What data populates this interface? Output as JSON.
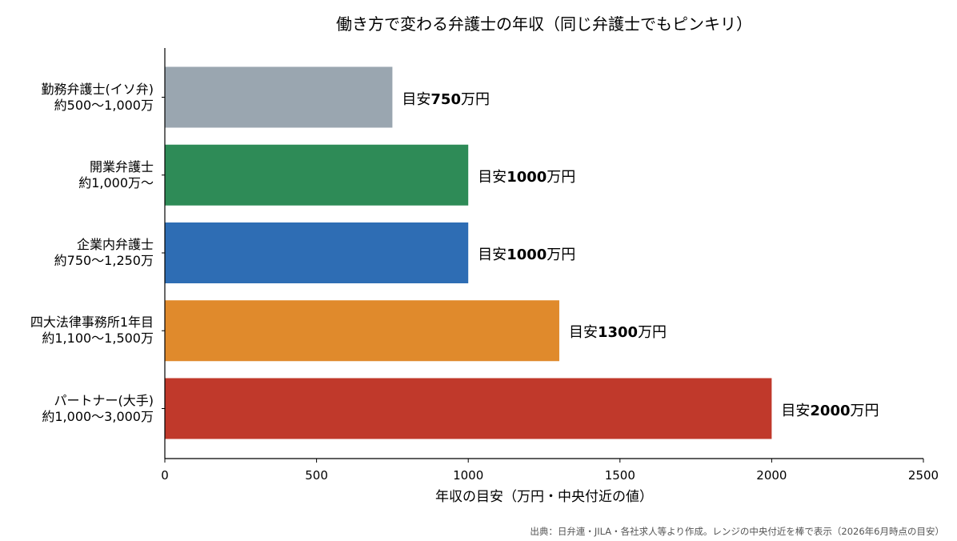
{
  "chart_data": {
    "type": "bar",
    "orientation": "horizontal",
    "title": "働き方で変わる弁護士の年収（同じ弁護士でもピンキリ）",
    "xlabel": "年収の目安（万円・中央付近の値）",
    "xlim": [
      0,
      2500
    ],
    "xticks": [
      "0",
      "500",
      "1000",
      "1500",
      "2000",
      "2500"
    ],
    "categories": [
      {
        "name": "勤務弁護士(イソ弁)",
        "range": "約500〜1,000万"
      },
      {
        "name": "開業弁護士",
        "range": "約1,000万〜"
      },
      {
        "name": "企業内弁護士",
        "range": "約750〜1,250万"
      },
      {
        "name": "四大法律事務所1年目",
        "range": "約1,100〜1,500万"
      },
      {
        "name": "パートナー(大手)",
        "range": "約1,000〜3,000万"
      }
    ],
    "values": [
      750,
      1000,
      1000,
      1300,
      2000
    ],
    "colors": [
      "#9aa6b0",
      "#2e8b57",
      "#2e6db4",
      "#e08a2c",
      "#c0392b"
    ],
    "data_labels": {
      "prefix": "目安",
      "suffix": "万円"
    },
    "grid": false,
    "legend": "none"
  },
  "source": "出典：日弁連・JILA・各社求人等より作成。レンジの中央付近を棒で表示（2026年6月時点の目安）"
}
